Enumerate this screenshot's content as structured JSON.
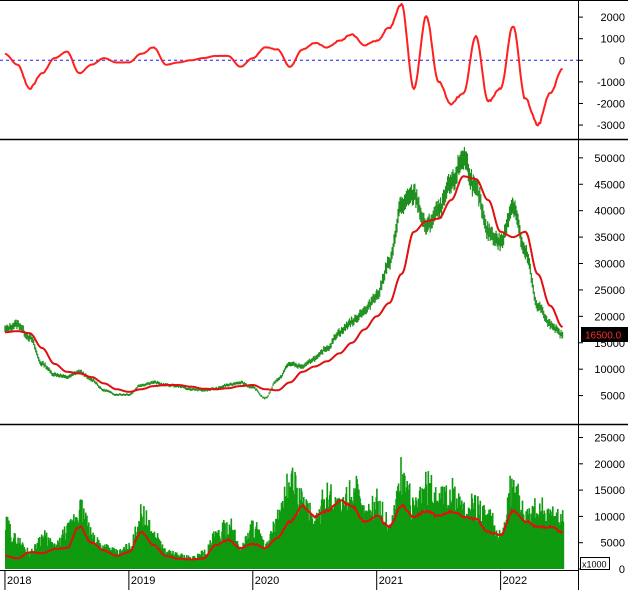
{
  "colors": {
    "oscillator_line": "#ff1f1f",
    "oscillator_zero_line": "#1a1aff",
    "candles": "#1f8f1f",
    "moving_average": "#e01010",
    "volume_bars": "#0f9a0f",
    "volume_ma": "#e01010",
    "badge_bg": "#000000",
    "badge_text": "#ff2a2a",
    "frame": "#000000"
  },
  "chart_data": [
    {
      "type": "line",
      "name": "oscillator",
      "ylim": [
        -3600,
        2700
      ],
      "yticks": [
        2000,
        1000,
        0,
        -1000,
        -2000,
        -3000
      ],
      "reference_line": 0,
      "x": [
        2018.0,
        2018.1,
        2018.2,
        2018.3,
        2018.4,
        2018.5,
        2018.6,
        2018.7,
        2018.8,
        2018.9,
        2019.0,
        2019.1,
        2019.2,
        2019.3,
        2019.4,
        2019.5,
        2019.6,
        2019.7,
        2019.8,
        2019.9,
        2020.0,
        2020.1,
        2020.2,
        2020.3,
        2020.4,
        2020.5,
        2020.6,
        2020.7,
        2020.8,
        2020.9,
        2021.0,
        2021.1,
        2021.2,
        2021.3,
        2021.4,
        2021.5,
        2021.6,
        2021.7,
        2021.8,
        2021.9,
        2022.0,
        2022.1,
        2022.2,
        2022.3,
        2022.4,
        2022.5
      ],
      "values": [
        300,
        -200,
        -1300,
        -600,
        100,
        400,
        -600,
        -200,
        100,
        -100,
        -100,
        300,
        600,
        -200,
        -100,
        0,
        100,
        200,
        200,
        -300,
        100,
        600,
        500,
        -300,
        500,
        800,
        600,
        900,
        1200,
        700,
        900,
        1500,
        2600,
        -1300,
        2000,
        -1000,
        -2000,
        -1500,
        1100,
        -1900,
        -1300,
        1600,
        -1800,
        -3000,
        -1500,
        -400
      ]
    },
    {
      "type": "line",
      "name": "price",
      "ylim": [
        0,
        53000
      ],
      "yticks": [
        50000,
        45000,
        40000,
        35000,
        30000,
        25000,
        20000,
        15000,
        10000,
        5000
      ],
      "last_price_label": "16500.0",
      "x": [
        2018.0,
        2018.1,
        2018.2,
        2018.3,
        2018.4,
        2018.5,
        2018.6,
        2018.7,
        2018.8,
        2018.9,
        2019.0,
        2019.1,
        2019.2,
        2019.3,
        2019.4,
        2019.5,
        2019.6,
        2019.7,
        2019.8,
        2019.9,
        2020.0,
        2020.1,
        2020.2,
        2020.3,
        2020.4,
        2020.5,
        2020.6,
        2020.7,
        2020.8,
        2020.9,
        2021.0,
        2021.1,
        2021.2,
        2021.3,
        2021.4,
        2021.5,
        2021.6,
        2021.7,
        2021.8,
        2021.9,
        2022.0,
        2022.1,
        2022.2,
        2022.3,
        2022.4,
        2022.5
      ],
      "series": [
        {
          "values": [
            17500,
            18500,
            16000,
            11000,
            9000,
            8500,
            9500,
            8000,
            6000,
            5200,
            5200,
            7000,
            7500,
            7000,
            6800,
            6200,
            6000,
            6300,
            7000,
            7500,
            6500,
            4500,
            8000,
            11000,
            10500,
            12000,
            14000,
            17000,
            19000,
            21000,
            24000,
            30000,
            41000,
            43000,
            37000,
            40000,
            45000,
            50000,
            44000,
            36000,
            34000,
            41000,
            32000,
            22000,
            18500,
            16500
          ]
        },
        {
          "values": [
            17000,
            17200,
            16800,
            14000,
            11000,
            9500,
            9200,
            8500,
            7300,
            6200,
            5700,
            6200,
            6800,
            7000,
            7000,
            6700,
            6300,
            6200,
            6400,
            6800,
            7000,
            6200,
            6000,
            7500,
            9500,
            10500,
            11500,
            13000,
            15000,
            17500,
            20000,
            22500,
            28000,
            36000,
            38000,
            38500,
            42000,
            46500,
            46000,
            42000,
            36000,
            35000,
            36000,
            28000,
            22000,
            18000
          ]
        }
      ]
    },
    {
      "type": "bar",
      "name": "volume",
      "unit_label": "x1000",
      "ylim": [
        0,
        27000
      ],
      "yticks": [
        25000,
        20000,
        15000,
        10000,
        5000,
        0
      ],
      "x_labels": [
        "2018",
        "2019",
        "2020",
        "2021",
        "2022"
      ],
      "x": [
        2018.0,
        2018.1,
        2018.2,
        2018.3,
        2018.4,
        2018.5,
        2018.6,
        2018.7,
        2018.8,
        2018.9,
        2019.0,
        2019.1,
        2019.2,
        2019.3,
        2019.4,
        2019.5,
        2019.6,
        2019.7,
        2019.8,
        2019.9,
        2020.0,
        2020.1,
        2020.2,
        2020.3,
        2020.4,
        2020.5,
        2020.6,
        2020.7,
        2020.8,
        2020.9,
        2021.0,
        2021.1,
        2021.2,
        2021.3,
        2021.4,
        2021.5,
        2021.6,
        2021.7,
        2021.8,
        2021.9,
        2022.0,
        2022.1,
        2022.2,
        2022.3,
        2022.4,
        2022.5
      ],
      "series": [
        {
          "values": [
            8000,
            5000,
            3000,
            6000,
            4000,
            7000,
            11000,
            6000,
            4000,
            3000,
            4000,
            10000,
            6000,
            3000,
            2500,
            2000,
            3000,
            6000,
            8000,
            4000,
            8000,
            4000,
            9000,
            16000,
            12000,
            9000,
            14000,
            11000,
            15000,
            10000,
            12000,
            8000,
            17000,
            11000,
            15000,
            13000,
            14000,
            10000,
            12000,
            9000,
            6000,
            16000,
            9000,
            11000,
            10000,
            9000
          ]
        },
        {
          "values": [
            2500,
            2000,
            3200,
            3000,
            3800,
            4000,
            8000,
            5000,
            3500,
            2500,
            3200,
            7000,
            4500,
            2500,
            2000,
            1800,
            2000,
            4500,
            5500,
            4000,
            4800,
            4000,
            6000,
            9000,
            12000,
            10000,
            11000,
            13000,
            12000,
            9000,
            10000,
            8000,
            12000,
            10000,
            11000,
            10000,
            11000,
            10000,
            9500,
            7000,
            6500,
            11000,
            9000,
            8000,
            8000,
            7000
          ]
        }
      ]
    }
  ]
}
